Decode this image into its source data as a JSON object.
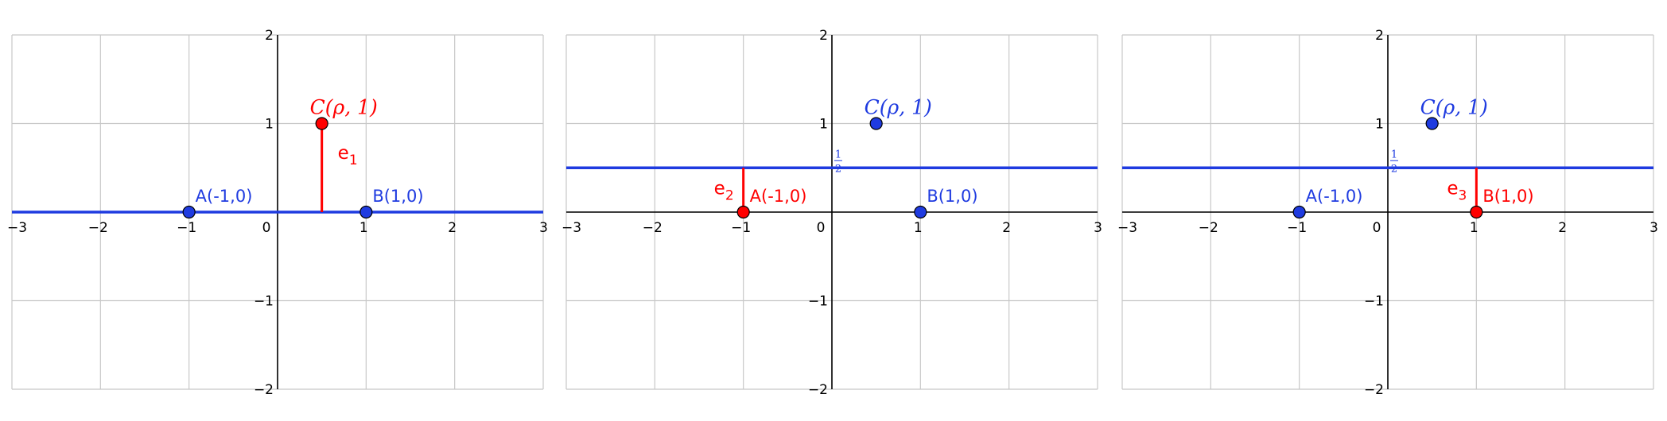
{
  "colors": {
    "blue": "#1f3be0",
    "red": "#ff0000",
    "grid": "#c8c8c8"
  },
  "axes": {
    "x_ticks": [
      "−3",
      "−2",
      "−1",
      "0",
      "1",
      "2",
      "3"
    ],
    "y_ticks": [
      "2",
      "1",
      "−1",
      "−2"
    ],
    "xlim": [
      -3,
      3
    ],
    "ylim": [
      -2,
      2
    ]
  },
  "panels": [
    {
      "line_y": 0,
      "half_label": "",
      "points": [
        {
          "name": "A",
          "x": -1,
          "y": 0,
          "label": "A(-1,0)",
          "color": "blue"
        },
        {
          "name": "B",
          "x": 1,
          "y": 0,
          "label": "B(1,0)",
          "color": "blue"
        },
        {
          "name": "C",
          "x": 0.5,
          "y": 1,
          "label": "C(ρ, 1)",
          "color": "red"
        }
      ],
      "error": {
        "label": "e",
        "sub": "1",
        "x": 0.5,
        "y_from": 0,
        "y_to": 1
      }
    },
    {
      "line_y": 0.5,
      "half_label": "1/2",
      "points": [
        {
          "name": "A",
          "x": -1,
          "y": 0,
          "label": "A(-1,0)",
          "color": "red"
        },
        {
          "name": "B",
          "x": 1,
          "y": 0,
          "label": "B(1,0)",
          "color": "blue"
        },
        {
          "name": "C",
          "x": 0.5,
          "y": 1,
          "label": "C(ρ, 1)",
          "color": "blue"
        }
      ],
      "error": {
        "label": "e",
        "sub": "2",
        "x": -1,
        "y_from": 0,
        "y_to": 0.5
      }
    },
    {
      "line_y": 0.5,
      "half_label": "1/2",
      "points": [
        {
          "name": "A",
          "x": -1,
          "y": 0,
          "label": "A(-1,0)",
          "color": "blue"
        },
        {
          "name": "B",
          "x": 1,
          "y": 0,
          "label": "B(1,0)",
          "color": "red"
        },
        {
          "name": "C",
          "x": 0.5,
          "y": 1,
          "label": "C(ρ, 1)",
          "color": "blue"
        }
      ],
      "error": {
        "label": "e",
        "sub": "3",
        "x": 1,
        "y_from": 0,
        "y_to": 0.5
      }
    }
  ]
}
